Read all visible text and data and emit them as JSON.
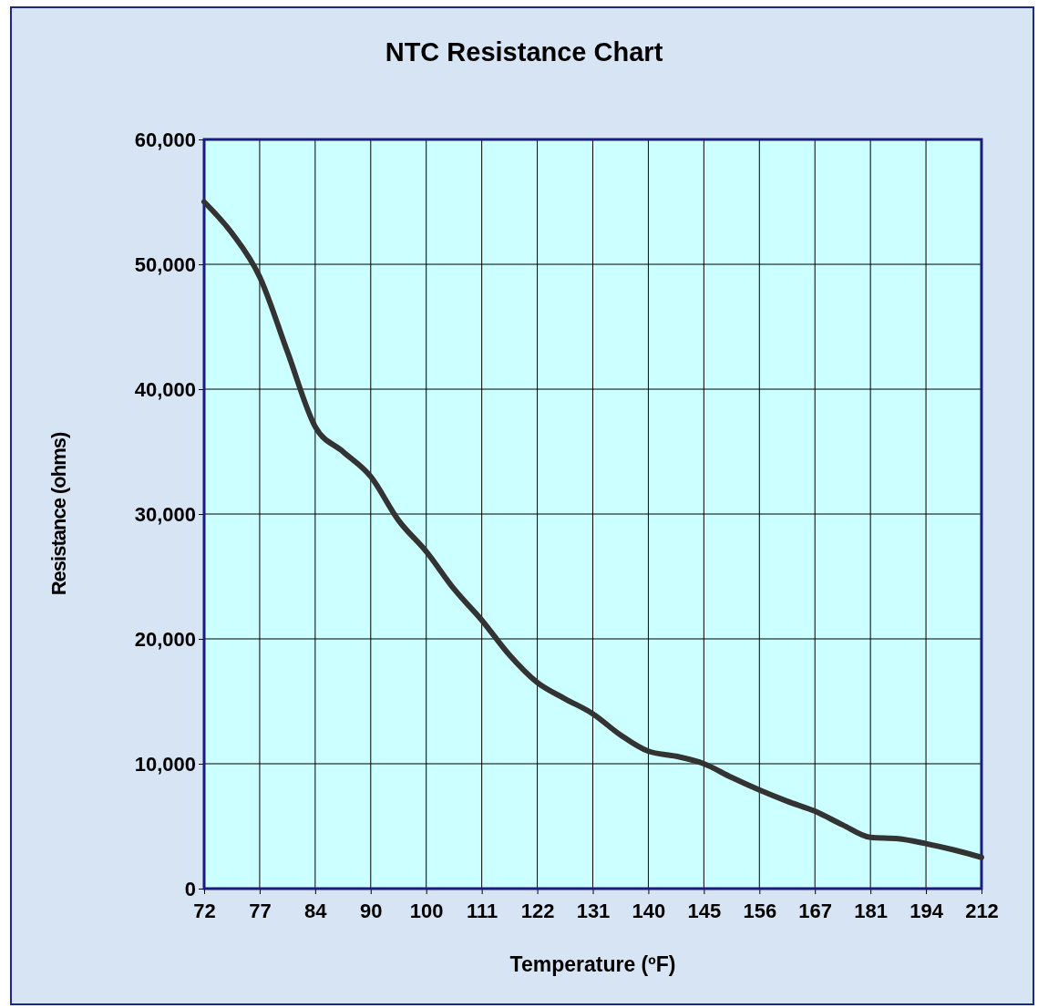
{
  "chart_data": {
    "type": "line",
    "title": "NTC Resistance Chart",
    "xlabel": "Temperature (ºF)",
    "ylabel": "Resistance (ohms)",
    "categories": [
      "72",
      null,
      "77",
      null,
      "84",
      null,
      "90",
      null,
      "100",
      null,
      "111",
      null,
      "122",
      null,
      "131",
      null,
      "140",
      null,
      "145",
      null,
      "156",
      null,
      "167",
      null,
      "181",
      null,
      "194",
      null,
      "212"
    ],
    "series": [
      {
        "color": "#333333",
        "values": [
          55000,
          52500,
          49000,
          43000,
          37000,
          35000,
          33000,
          29500,
          27000,
          24000,
          21500,
          18700,
          16500,
          15200,
          14000,
          12300,
          11000,
          10600,
          10000,
          8900,
          7900,
          7000,
          6200,
          5100,
          4100,
          4000,
          3600,
          3100,
          2500
        ]
      }
    ],
    "ylim": [
      0,
      60000
    ],
    "yticks": [
      0,
      {
        "value": 10000,
        "label": "10,000"
      },
      {
        "value": 20000,
        "label": "20,000"
      },
      {
        "value": 30000,
        "label": "30,000"
      },
      {
        "value": 40000,
        "label": "40,000"
      },
      {
        "value": 50000,
        "label": "50,000"
      },
      {
        "value": 60000,
        "label": "60,000"
      }
    ],
    "grid": true,
    "marker": "none",
    "line_style": "solid"
  }
}
